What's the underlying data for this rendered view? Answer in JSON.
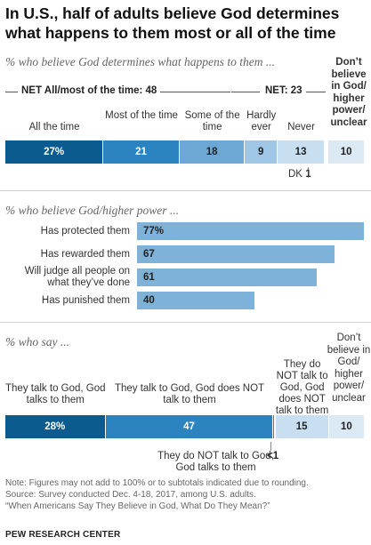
{
  "title": "In U.S., half of adults believe God determines what happens to them most or all of the time",
  "panel1": {
    "subtitle": "% who believe God determines what happens to them ...",
    "net_all_most": "NET All/most of the time: 48",
    "net_23": "NET: 23",
    "dont_believe": "Don’t believe in God/ higher power/ unclear",
    "dk_label": "DK",
    "dk_value": "1"
  },
  "panel2": {
    "subtitle": "% who believe God/higher power ..."
  },
  "panel3": {
    "subtitle": "% who say ...",
    "dont_believe": "Don’t believe in God/ higher power/ unclear",
    "neither_label": "They do NOT talk to God, God talks to them",
    "neither_value": "<1"
  },
  "chart_data": [
    {
      "type": "bar",
      "stacked": true,
      "orientation": "horizontal",
      "categories": [
        "All the time",
        "Most of the time",
        "Some of the time",
        "Hardly ever",
        "Never",
        "DK",
        "Don’t believe in God/ higher power/ unclear"
      ],
      "values": [
        27,
        21,
        18,
        9,
        13,
        1,
        10
      ],
      "labels": [
        "27%",
        "21",
        "18",
        "9",
        "13",
        "",
        "10"
      ],
      "colors": [
        "#0b5b8e",
        "#2b83c0",
        "#6da7d4",
        "#9fc6e5",
        "#c7dff0",
        "#ffffff",
        "#dbe9f5"
      ],
      "xlim": [
        0,
        100
      ]
    },
    {
      "type": "bar",
      "orientation": "horizontal",
      "categories": [
        "Has protected them",
        "Has rewarded them",
        "Will judge all people on what they’ve done",
        "Has punished them"
      ],
      "values": [
        77,
        67,
        61,
        40
      ],
      "labels": [
        "77%",
        "67",
        "61",
        "40"
      ],
      "color": "#7fb2d8"
    },
    {
      "type": "bar",
      "stacked": true,
      "orientation": "horizontal",
      "categories": [
        "They talk to God, God talks to them",
        "They talk to God, God does NOT talk to them",
        "They do NOT talk to God, God talks to them",
        "They do NOT talk to God, God does NOT talk to them",
        "Don’t believe in God/ higher power/ unclear"
      ],
      "values": [
        28,
        47,
        0.5,
        15,
        10
      ],
      "labels": [
        "28%",
        "47",
        "",
        "15",
        "10"
      ],
      "colors": [
        "#0b5b8e",
        "#2b83c0",
        "#2b83c0",
        "#c7dff0",
        "#dbe9f5"
      ],
      "xlim": [
        0,
        100
      ]
    }
  ],
  "notes": {
    "note": "Note: Figures may not add to 100% or to subtotals indicated due to rounding.",
    "source": "Source: Survey conducted Dec. 4-18, 2017, among U.S. adults.",
    "report": "“When Americans Say They Believe in God, What Do They Mean?”",
    "footer": "PEW RESEARCH CENTER"
  }
}
